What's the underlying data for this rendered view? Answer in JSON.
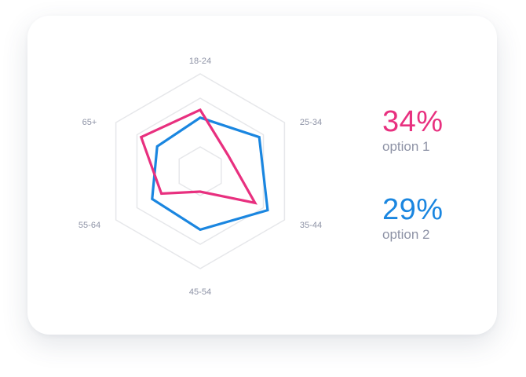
{
  "colors": {
    "option_1": "#e8307f",
    "option_2": "#1a86e0",
    "grid": "#e6e7ea",
    "muted_text": "#8e93a6"
  },
  "stats": [
    {
      "value": "34%",
      "label": "option 1",
      "color": "#e8307f"
    },
    {
      "value": "29%",
      "label": "option 2",
      "color": "#1a86e0"
    }
  ],
  "chart_data": {
    "type": "radar",
    "categories": [
      "18-24",
      "25-34",
      "35-44",
      "45-54",
      "55-64",
      "65+"
    ],
    "series": [
      {
        "name": "option 1",
        "color": "#e8307f",
        "values": [
          63,
          33,
          65,
          21,
          46,
          70
        ]
      },
      {
        "name": "option 2",
        "color": "#1a86e0",
        "values": [
          55,
          70,
          80,
          60,
          57,
          51
        ]
      }
    ],
    "range": [
      0,
      100
    ],
    "grid_levels": [
      25,
      75,
      100
    ],
    "grid": true,
    "legend": "none"
  }
}
